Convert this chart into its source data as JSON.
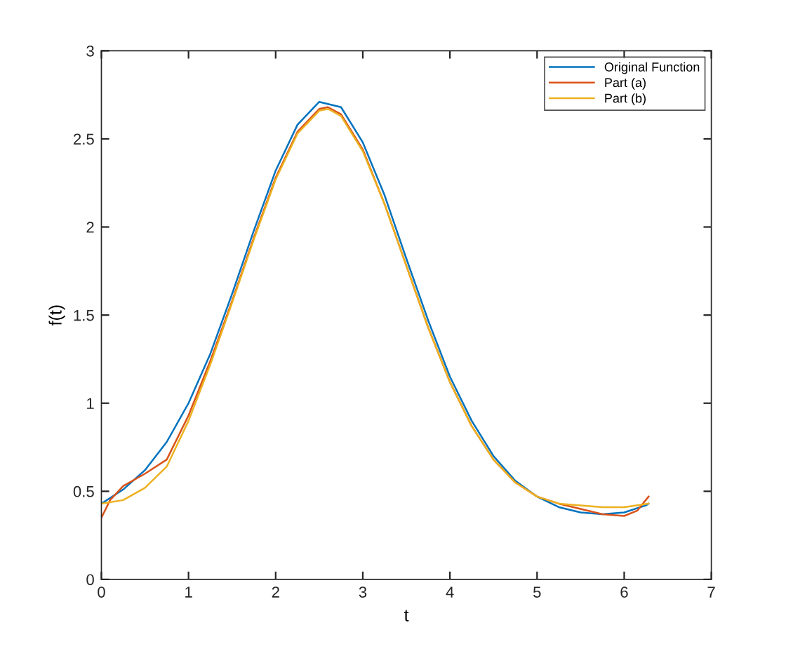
{
  "chart_data": {
    "type": "line",
    "xlabel": "t",
    "ylabel": "f(t)",
    "xlim": [
      0,
      7
    ],
    "ylim": [
      0,
      3
    ],
    "xticks": [
      0,
      1,
      2,
      3,
      4,
      5,
      6,
      7
    ],
    "yticks": [
      0,
      0.5,
      1,
      1.5,
      2,
      2.5,
      3
    ],
    "grid": false,
    "legend": "top right",
    "marker": "none",
    "line_style": "solid",
    "series": [
      {
        "name": "Original Function",
        "color": "#0072bd",
        "x": [
          0,
          0.25,
          0.5,
          0.75,
          1,
          1.25,
          1.5,
          1.75,
          2,
          2.25,
          2.5,
          2.75,
          3,
          3.25,
          3.5,
          3.75,
          4,
          4.25,
          4.5,
          4.75,
          5,
          5.25,
          5.5,
          5.75,
          6,
          6.25,
          6.28
        ],
        "values": [
          0.43,
          0.51,
          0.62,
          0.78,
          1.0,
          1.28,
          1.62,
          1.98,
          2.32,
          2.58,
          2.71,
          2.68,
          2.48,
          2.18,
          1.82,
          1.47,
          1.15,
          0.9,
          0.7,
          0.56,
          0.47,
          0.41,
          0.38,
          0.37,
          0.38,
          0.42,
          0.43
        ]
      },
      {
        "name": "Part (a)",
        "color": "#d95319",
        "x": [
          0,
          0.1,
          0.25,
          0.5,
          0.75,
          1,
          1.25,
          1.5,
          1.75,
          2,
          2.25,
          2.5,
          2.6,
          2.75,
          3,
          3.25,
          3.5,
          3.75,
          4,
          4.25,
          4.5,
          4.75,
          5,
          5.25,
          5.5,
          5.75,
          6,
          6.15,
          6.28
        ],
        "values": [
          0.35,
          0.45,
          0.53,
          0.6,
          0.68,
          0.93,
          1.24,
          1.58,
          1.94,
          2.28,
          2.54,
          2.67,
          2.68,
          2.64,
          2.44,
          2.13,
          1.78,
          1.43,
          1.12,
          0.87,
          0.68,
          0.55,
          0.47,
          0.43,
          0.4,
          0.37,
          0.36,
          0.39,
          0.47
        ]
      },
      {
        "name": "Part (b)",
        "color": "#edb120",
        "x": [
          0,
          0.25,
          0.5,
          0.75,
          1,
          1.25,
          1.5,
          1.75,
          2,
          2.25,
          2.5,
          2.6,
          2.75,
          3,
          3.25,
          3.5,
          3.75,
          4,
          4.25,
          4.5,
          4.75,
          5,
          5.25,
          5.5,
          5.75,
          6,
          6.28
        ],
        "values": [
          0.43,
          0.45,
          0.52,
          0.64,
          0.9,
          1.22,
          1.57,
          1.93,
          2.27,
          2.53,
          2.66,
          2.67,
          2.63,
          2.43,
          2.13,
          1.78,
          1.43,
          1.12,
          0.87,
          0.68,
          0.55,
          0.47,
          0.43,
          0.42,
          0.41,
          0.41,
          0.43
        ]
      }
    ]
  }
}
